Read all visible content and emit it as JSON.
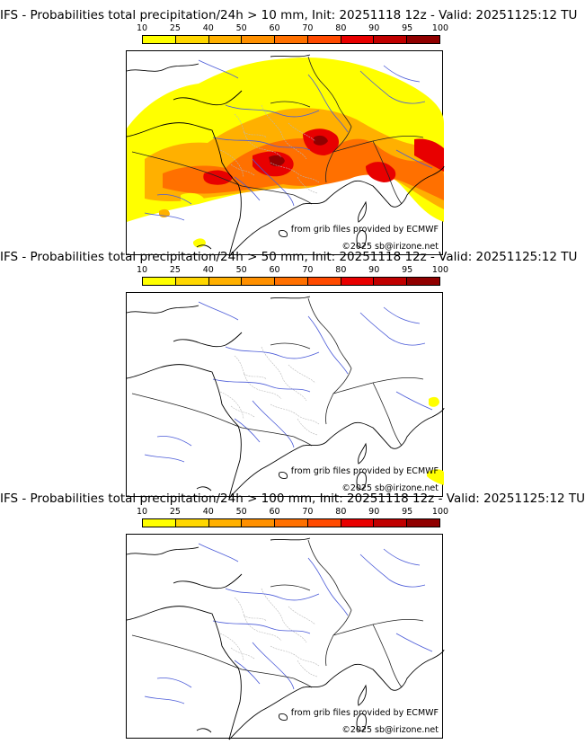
{
  "colorscale": {
    "labels": [
      "10",
      "25",
      "40",
      "50",
      "60",
      "70",
      "80",
      "90",
      "95",
      "100"
    ],
    "colors": [
      "#ffff00",
      "#ffd700",
      "#ffb000",
      "#ff9000",
      "#ff7000",
      "#ff4a00",
      "#e80000",
      "#c00000",
      "#900000",
      "#5a0000"
    ]
  },
  "panels": [
    {
      "title": "IFS - Probabilities total precipitation/24h > 10 mm, Init: 20251118 12z - Valid: 20251125:12 TU",
      "level": "high",
      "credit_data": "from grib files provided by ECMWF",
      "credit_site": "©2025 sb@irizone.net"
    },
    {
      "title": "IFS - Probabilities total precipitation/24h > 50 mm, Init: 20251118 12z - Valid: 20251125:12 TU",
      "level": "low",
      "credit_data": "from grib files provided by ECMWF",
      "credit_site": "©2025 sb@irizone.net"
    },
    {
      "title": "IFS - Probabilities total precipitation/24h > 100 mm, Init: 20251118 12z - Valid: 20251125:12 TU",
      "level": "none",
      "credit_data": "from grib files provided by ECMWF",
      "credit_site": "©2025 sb@irizone.net"
    }
  ]
}
